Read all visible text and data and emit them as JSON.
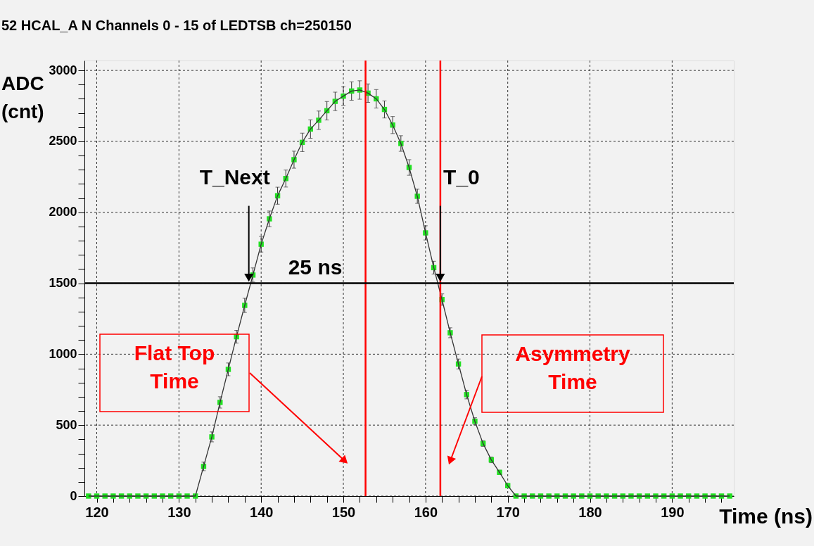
{
  "chart_data": {
    "type": "line",
    "title": "52 HCAL_A N Channels 0 - 15 of LEDTSB ch=250150",
    "xlabel": "Time (ns)",
    "ylabel": "ADC (cnt)",
    "x": [
      119,
      120,
      121,
      122,
      123,
      124,
      125,
      126,
      127,
      128,
      129,
      130,
      131,
      132,
      133,
      134,
      135,
      136,
      137,
      138,
      139,
      140,
      141,
      142,
      143,
      144,
      145,
      146,
      147,
      148,
      149,
      150,
      151,
      152,
      153,
      154,
      155,
      156,
      157,
      158,
      159,
      160,
      161,
      162,
      163,
      164,
      165,
      166,
      167,
      168,
      169,
      170,
      171,
      172,
      173,
      174,
      175,
      176,
      177,
      178,
      179,
      180,
      181,
      182,
      183,
      184,
      185,
      186,
      187,
      188,
      189,
      190,
      191,
      192,
      193,
      194,
      195,
      196,
      197
    ],
    "series": [
      {
        "type": "scatter",
        "marker": "square",
        "color": "#22e022",
        "values": [
          0,
          0,
          0,
          0,
          0,
          0,
          0,
          0,
          0,
          0,
          0,
          0,
          0,
          0,
          209,
          417,
          660,
          893,
          1123,
          1344,
          1558,
          1775,
          1954,
          2117,
          2238,
          2371,
          2493,
          2587,
          2649,
          2716,
          2782,
          2819,
          2855,
          2862,
          2840,
          2800,
          2725,
          2615,
          2485,
          2316,
          2113,
          1855,
          1610,
          1385,
          1151,
          931,
          715,
          527,
          370,
          255,
          167,
          73,
          0,
          0,
          0,
          0,
          0,
          0,
          0,
          0,
          0,
          0,
          0,
          0,
          0,
          0,
          0,
          0,
          0,
          0,
          0,
          0,
          0,
          0,
          0,
          0,
          0,
          0,
          0
        ],
        "errors": [
          null,
          null,
          null,
          null,
          null,
          null,
          null,
          null,
          null,
          null,
          null,
          null,
          null,
          null,
          30,
          35,
          40,
          45,
          45,
          50,
          50,
          55,
          55,
          60,
          60,
          60,
          65,
          65,
          65,
          65,
          65,
          65,
          65,
          65,
          65,
          65,
          60,
          60,
          55,
          55,
          50,
          50,
          45,
          40,
          35,
          35,
          30,
          25,
          20,
          20,
          15,
          15,
          null,
          null,
          null,
          null,
          null,
          null,
          null,
          null,
          null,
          null,
          null,
          null,
          null,
          null,
          null,
          null,
          null,
          null,
          null,
          null,
          null,
          null,
          null,
          null,
          null,
          null,
          null
        ]
      },
      {
        "color": "#333333",
        "line_style": "solid",
        "values": [
          0,
          0,
          0,
          0,
          0,
          0,
          0,
          0,
          0,
          0,
          0,
          0,
          0,
          0,
          209,
          417,
          660,
          893,
          1123,
          1344,
          1558,
          1775,
          1954,
          2117,
          2238,
          2371,
          2493,
          2587,
          2649,
          2716,
          2782,
          2819,
          2855,
          2862,
          2840,
          2800,
          2725,
          2615,
          2485,
          2316,
          2113,
          1855,
          1610,
          1385,
          1151,
          931,
          715,
          527,
          370,
          255,
          167,
          73,
          0,
          0,
          0,
          0,
          0,
          0,
          0,
          0,
          0,
          0,
          0,
          0,
          0,
          0,
          0,
          0,
          0,
          0,
          0,
          0,
          0,
          0,
          0,
          0,
          0,
          0,
          0
        ]
      }
    ],
    "grid": true,
    "xlim": [
      118.5,
      197.5
    ],
    "xticks": [
      120,
      {
        "value": 122,
        "label": null
      },
      {
        "value": 124,
        "label": null
      },
      {
        "value": 126,
        "label": null
      },
      {
        "value": 128,
        "label": null
      },
      130,
      {
        "value": 132,
        "label": null
      },
      {
        "value": 134,
        "label": null
      },
      {
        "value": 136,
        "label": null
      },
      {
        "value": 138,
        "label": null
      },
      140,
      {
        "value": 142,
        "label": null
      },
      {
        "value": 144,
        "label": null
      },
      {
        "value": 146,
        "label": null
      },
      {
        "value": 148,
        "label": null
      },
      150,
      {
        "value": 152,
        "label": null
      },
      {
        "value": 154,
        "label": null
      },
      {
        "value": 156,
        "label": null
      },
      {
        "value": 158,
        "label": null
      },
      160,
      {
        "value": 162,
        "label": null
      },
      {
        "value": 164,
        "label": null
      },
      {
        "value": 166,
        "label": null
      },
      {
        "value": 168,
        "label": null
      },
      170,
      {
        "value": 172,
        "label": null
      },
      {
        "value": 174,
        "label": null
      },
      {
        "value": 176,
        "label": null
      },
      {
        "value": 178,
        "label": null
      },
      180,
      {
        "value": 182,
        "label": null
      },
      {
        "value": 184,
        "label": null
      },
      {
        "value": 186,
        "label": null
      },
      {
        "value": 188,
        "label": null
      },
      190,
      {
        "value": 192,
        "label": null
      },
      {
        "value": 194,
        "label": null
      },
      {
        "value": 196,
        "label": null
      }
    ],
    "ylim": [
      0,
      3070
    ],
    "yticks": [
      0,
      {
        "value": 100,
        "label": null
      },
      {
        "value": 200,
        "label": null
      },
      {
        "value": 300,
        "label": null
      },
      {
        "value": 400,
        "label": null
      },
      500,
      {
        "value": 600,
        "label": null
      },
      {
        "value": 700,
        "label": null
      },
      {
        "value": 800,
        "label": null
      },
      {
        "value": 900,
        "label": null
      },
      1000,
      {
        "value": 1100,
        "label": null
      },
      {
        "value": 1200,
        "label": null
      },
      {
        "value": 1300,
        "label": null
      },
      {
        "value": 1400,
        "label": null
      },
      1500,
      {
        "value": 1600,
        "label": null
      },
      {
        "value": 1700,
        "label": null
      },
      {
        "value": 1800,
        "label": null
      },
      {
        "value": 1900,
        "label": null
      },
      2000,
      {
        "value": 2100,
        "label": null
      },
      {
        "value": 2200,
        "label": null
      },
      {
        "value": 2300,
        "label": null
      },
      {
        "value": 2400,
        "label": null
      },
      2500,
      {
        "value": 2600,
        "label": null
      },
      {
        "value": 2700,
        "label": null
      },
      {
        "value": 2800,
        "label": null
      },
      {
        "value": 2900,
        "label": null
      },
      3000
    ],
    "ref_lines": [
      {
        "axis": "x",
        "value": 152.7,
        "color": "#ff0000"
      },
      {
        "axis": "x",
        "value": 161.8,
        "color": "#ff0000"
      },
      {
        "axis": "y",
        "value": 1500,
        "color": "#000000"
      }
    ],
    "annotations": [
      {
        "text": "T_Next",
        "x": 138.5,
        "y": 1500
      },
      {
        "text": "T_0",
        "x": 161.8,
        "y": 1500
      },
      {
        "text": "25 ns",
        "x": 150,
        "y": 1500
      },
      "Flat Top Time",
      "Asymmetry Time"
    ]
  }
}
